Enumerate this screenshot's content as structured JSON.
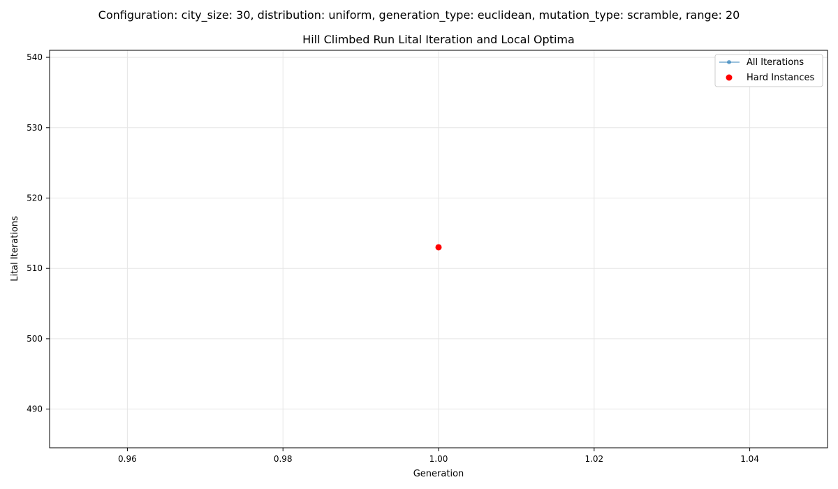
{
  "figure": {
    "suptitle": "Configuration: city_size: 30, distribution: uniform, generation_type: euclidean, mutation_type: scramble, range: 20"
  },
  "chart_data": {
    "type": "scatter",
    "title": "Hill Climbed Run Lital Iteration and Local Optima",
    "xlabel": "Generation",
    "ylabel": "Lital Iterations",
    "xlim": [
      0.95,
      1.05
    ],
    "ylim": [
      484.5,
      541.0
    ],
    "x_ticks": [
      0.96,
      0.98,
      1.0,
      1.02,
      1.04
    ],
    "x_tick_labels": [
      "0.96",
      "0.98",
      "1.00",
      "1.02",
      "1.04"
    ],
    "y_ticks": [
      490,
      500,
      510,
      520,
      530,
      540
    ],
    "y_tick_labels": [
      "490",
      "500",
      "510",
      "520",
      "530",
      "540"
    ],
    "grid": true,
    "legend_position": "top-right",
    "series": [
      {
        "name": "All Iterations",
        "kind": "line",
        "color": "#1f77b4",
        "x": [
          1.0
        ],
        "y": [
          513
        ]
      },
      {
        "name": "Hard Instances",
        "kind": "scatter",
        "color": "#ff0000",
        "x": [
          1.0
        ],
        "y": [
          513
        ]
      }
    ]
  }
}
